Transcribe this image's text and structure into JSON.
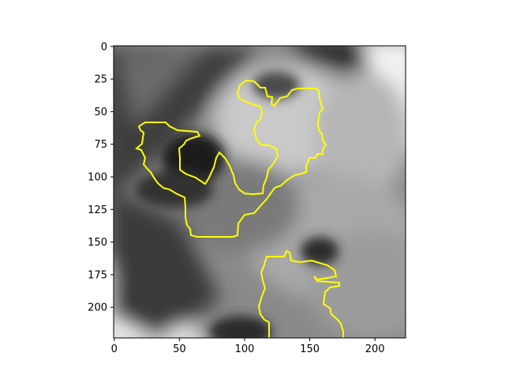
{
  "image_panel": {
    "image_description": "grayscale close-up of a face with yellow segmentation contour overlays",
    "contour_color": "#ffff00",
    "colormap": "gray"
  },
  "axes": {
    "x_ticks": [
      {
        "value": 0,
        "label": "0"
      },
      {
        "value": 50,
        "label": "50"
      },
      {
        "value": 100,
        "label": "100"
      },
      {
        "value": 150,
        "label": "150"
      },
      {
        "value": 200,
        "label": "200"
      }
    ],
    "y_ticks": [
      {
        "value": 0,
        "label": "0"
      },
      {
        "value": 25,
        "label": "25"
      },
      {
        "value": 50,
        "label": "50"
      },
      {
        "value": 75,
        "label": "75"
      },
      {
        "value": 100,
        "label": "100"
      },
      {
        "value": 125,
        "label": "125"
      },
      {
        "value": 150,
        "label": "150"
      },
      {
        "value": 175,
        "label": "175"
      },
      {
        "value": 200,
        "label": "200"
      }
    ],
    "xlim": [
      -0.5,
      223.5
    ],
    "ylim": [
      223.5,
      -0.5
    ]
  }
}
